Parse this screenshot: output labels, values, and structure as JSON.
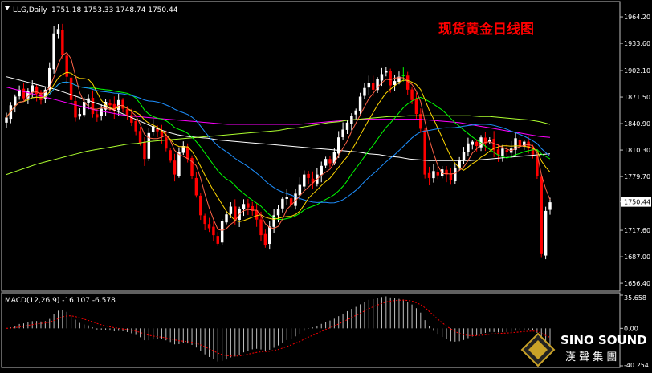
{
  "chart_data": [
    {
      "type": "candlestick",
      "symbol_label": "LLG,Daily",
      "ohlc_readout": "1751.18 1753.33 1748.74 1750.44",
      "title": "现货黄金日线图",
      "ylim": [
        1650,
        1980
      ],
      "y_ticks": [
        "1964.20",
        "1933.60",
        "1902.10",
        "1871.50",
        "1840.90",
        "1810.30",
        "1779.70",
        "1750.44",
        "1717.60",
        "1687.00",
        "1656.40"
      ],
      "last_price": "1750.44",
      "colors": {
        "up": "#ffffff",
        "down": "#ff0000",
        "doji": "#00ff00"
      },
      "closes": [
        1848,
        1862,
        1872,
        1880,
        1870,
        1878,
        1885,
        1875,
        1868,
        1880,
        1905,
        1945,
        1950,
        1920,
        1895,
        1868,
        1848,
        1852,
        1866,
        1870,
        1852,
        1848,
        1858,
        1866,
        1862,
        1855,
        1868,
        1858,
        1850,
        1842,
        1832,
        1818,
        1800,
        1830,
        1838,
        1832,
        1826,
        1812,
        1798,
        1782,
        1808,
        1815,
        1800,
        1780,
        1758,
        1735,
        1725,
        1720,
        1712,
        1702,
        1728,
        1736,
        1745,
        1730,
        1742,
        1748,
        1744,
        1740,
        1730,
        1712,
        1700,
        1722,
        1735,
        1742,
        1754,
        1756,
        1747,
        1760,
        1770,
        1782,
        1778,
        1772,
        1782,
        1792,
        1800,
        1795,
        1808,
        1825,
        1834,
        1842,
        1850,
        1856,
        1872,
        1882,
        1888,
        1880,
        1892,
        1898,
        1902,
        1885,
        1890,
        1895,
        1897,
        1880,
        1868,
        1852,
        1835,
        1782,
        1778,
        1786,
        1781,
        1788,
        1782,
        1776,
        1790,
        1798,
        1808,
        1818,
        1820,
        1815,
        1825,
        1818,
        1822,
        1810,
        1805,
        1812,
        1808,
        1812,
        1824,
        1815,
        1820,
        1812,
        1805,
        1780,
        1690,
        1740,
        1750
      ],
      "ma_lines": [
        {
          "color": "#ffffff",
          "values": [
            1895,
            1892,
            1889,
            1886,
            1883,
            1880,
            1876,
            1872,
            1868,
            1864,
            1860,
            1855,
            1850,
            1845,
            1840,
            1835,
            1831,
            1828,
            1826,
            1825,
            1824,
            1822,
            1821,
            1820,
            1819,
            1818,
            1817,
            1816,
            1815,
            1814,
            1813,
            1812,
            1811,
            1810,
            1809,
            1808,
            1806,
            1805,
            1803,
            1802,
            1800,
            1799,
            1798,
            1798,
            1798,
            1798,
            1798,
            1799,
            1800,
            1801,
            1802,
            1803,
            1804,
            1805,
            1806
          ]
        },
        {
          "color": "#ff00ff",
          "values": [
            1883,
            1880,
            1877,
            1874,
            1871,
            1868,
            1865,
            1862,
            1859,
            1856,
            1854,
            1852,
            1850,
            1849,
            1848,
            1847,
            1846,
            1845,
            1844,
            1843,
            1842,
            1841,
            1840,
            1840,
            1840,
            1840,
            1840,
            1840,
            1840,
            1840,
            1841,
            1842,
            1843,
            1844,
            1845,
            1846,
            1846,
            1846,
            1846,
            1846,
            1846,
            1846,
            1845,
            1844,
            1843,
            1842,
            1840,
            1838,
            1836,
            1834,
            1832,
            1830,
            1828,
            1826,
            1825
          ]
        },
        {
          "color": "#adff2f",
          "values": [
            1782,
            1786,
            1790,
            1794,
            1797,
            1800,
            1803,
            1806,
            1809,
            1811,
            1813,
            1815,
            1817,
            1818,
            1820,
            1821,
            1822,
            1823,
            1824,
            1825,
            1826,
            1827,
            1828,
            1829,
            1830,
            1831,
            1832,
            1833,
            1835,
            1836,
            1838,
            1840,
            1842,
            1843,
            1845,
            1846,
            1847,
            1848,
            1849,
            1849,
            1850,
            1850,
            1850,
            1850,
            1850,
            1850,
            1850,
            1849,
            1849,
            1848,
            1847,
            1846,
            1845,
            1843,
            1840
          ]
        }
      ],
      "ma_fast": [
        {
          "color": "#00ff00",
          "period": 20
        },
        {
          "color": "#1e90ff",
          "period": 34
        },
        {
          "color": "#ffd700",
          "period": 10
        },
        {
          "color": "#ff6347",
          "period": 5
        }
      ]
    },
    {
      "type": "histogram",
      "label": "MACD(12,26,9) -16.107 -6.578",
      "ylim": [
        -40.254,
        35.658
      ],
      "y_ticks": [
        "35.658",
        "0.00",
        "-40.254"
      ],
      "colors": {
        "bars": "#c0c0c0",
        "signal": "#ff0000"
      }
    }
  ],
  "brand": {
    "name": "SINO SOUND",
    "sub": "漢 聲 集 團"
  }
}
